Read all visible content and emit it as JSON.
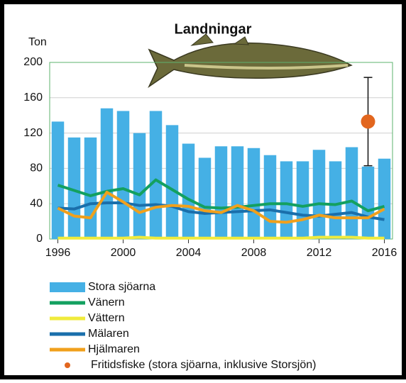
{
  "chart_data": {
    "type": "combo",
    "title": "Landningar",
    "y_label": "Ton",
    "xlim": [
      1995.5,
      2016.5
    ],
    "xticks": [
      1996,
      2000,
      2004,
      2008,
      2012,
      2016
    ],
    "ylim": [
      0,
      200
    ],
    "yticks": [
      0,
      40,
      80,
      120,
      160,
      200
    ],
    "grid": true,
    "x": [
      1996,
      1997,
      1998,
      1999,
      2000,
      2001,
      2002,
      2003,
      2004,
      2005,
      2006,
      2007,
      2008,
      2009,
      2010,
      2011,
      2012,
      2013,
      2014,
      2015,
      2016
    ],
    "series": [
      {
        "name": "Stora sjöarna",
        "kind": "bar",
        "color": "#45b0e5",
        "values": [
          133,
          115,
          115,
          148,
          145,
          120,
          145,
          129,
          108,
          92,
          105,
          105,
          103,
          95,
          88,
          88,
          101,
          88,
          104,
          82,
          91
        ]
      },
      {
        "name": "Vänern",
        "kind": "line",
        "color": "#13a060",
        "values": [
          61,
          55,
          49,
          54,
          57,
          50,
          67,
          56,
          45,
          36,
          35,
          36,
          38,
          40,
          40,
          37,
          40,
          39,
          43,
          32,
          37
        ]
      },
      {
        "name": "Vättern",
        "kind": "line",
        "color": "#f0eb3c",
        "values": [
          1,
          1,
          1,
          1,
          1,
          2,
          1,
          1,
          1,
          1,
          1,
          1,
          1,
          1,
          1,
          1,
          2,
          2,
          2,
          1,
          1
        ]
      },
      {
        "name": "Mälaren",
        "kind": "line",
        "color": "#1a6fab",
        "values": [
          35,
          34,
          40,
          41,
          41,
          38,
          39,
          37,
          31,
          29,
          30,
          31,
          32,
          33,
          30,
          27,
          26,
          28,
          30,
          25,
          22
        ]
      },
      {
        "name": "Hjälmaren",
        "kind": "line",
        "color": "#f0a01c",
        "values": [
          35,
          26,
          24,
          53,
          42,
          30,
          36,
          38,
          37,
          32,
          30,
          38,
          32,
          20,
          19,
          22,
          27,
          24,
          24,
          24,
          34
        ]
      },
      {
        "name": "Fritidsfiske (stora sjöarna, inklusive Storsjön)",
        "kind": "point",
        "color": "#e2661e",
        "x": [
          2015
        ],
        "values": [
          133
        ],
        "errors": [
          50
        ]
      }
    ]
  }
}
